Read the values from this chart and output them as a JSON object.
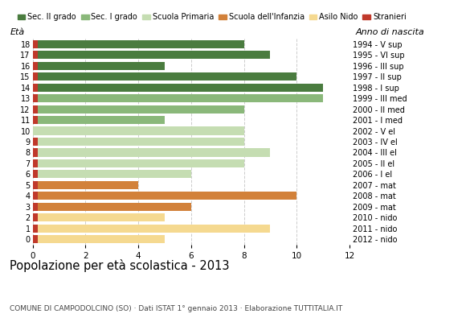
{
  "ages": [
    18,
    17,
    16,
    15,
    14,
    13,
    12,
    11,
    10,
    9,
    8,
    7,
    6,
    5,
    4,
    3,
    2,
    1,
    0
  ],
  "values": [
    8,
    9,
    5,
    10,
    11,
    11,
    8,
    5,
    8,
    8,
    9,
    8,
    6,
    4,
    10,
    6,
    5,
    9,
    5
  ],
  "stranieri": [
    1,
    1,
    1,
    1,
    1,
    1,
    1,
    1,
    0,
    1,
    1,
    1,
    1,
    1,
    1,
    1,
    1,
    1,
    1
  ],
  "anno_nascita": [
    "1994 - V sup",
    "1995 - VI sup",
    "1996 - III sup",
    "1997 - II sup",
    "1998 - I sup",
    "1999 - III med",
    "2000 - II med",
    "2001 - I med",
    "2002 - V el",
    "2003 - IV el",
    "2004 - III el",
    "2005 - II el",
    "2006 - I el",
    "2007 - mat",
    "2008 - mat",
    "2009 - mat",
    "2010 - nido",
    "2011 - nido",
    "2012 - nido"
  ],
  "colors": {
    "Sec. II grado": "#4a7c3f",
    "Sec. I grado": "#8ab87a",
    "Scuola Primaria": "#c5ddb2",
    "Scuola dell'Infanzia": "#d2813a",
    "Asilo Nido": "#f5d990",
    "Stranieri": "#c0392b"
  },
  "category_map": {
    "18": "Sec. II grado",
    "17": "Sec. II grado",
    "16": "Sec. II grado",
    "15": "Sec. II grado",
    "14": "Sec. II grado",
    "13": "Sec. I grado",
    "12": "Sec. I grado",
    "11": "Sec. I grado",
    "10": "Scuola Primaria",
    "9": "Scuola Primaria",
    "8": "Scuola Primaria",
    "7": "Scuola Primaria",
    "6": "Scuola Primaria",
    "5": "Scuola dell'Infanzia",
    "4": "Scuola dell'Infanzia",
    "3": "Scuola dell'Infanzia",
    "2": "Asilo Nido",
    "1": "Asilo Nido",
    "0": "Asilo Nido"
  },
  "title": "Popolazione per età scolastica - 2013",
  "subtitle": "COMUNE DI CAMPODOLCINO (SO) · Dati ISTAT 1° gennaio 2013 · Elaborazione TUTTITALIA.IT",
  "xlabel_eta": "Età",
  "xlabel_anno": "Anno di nascita",
  "xlim": [
    0,
    12
  ],
  "bar_height": 0.75,
  "background_color": "#ffffff",
  "grid_color": "#cccccc"
}
